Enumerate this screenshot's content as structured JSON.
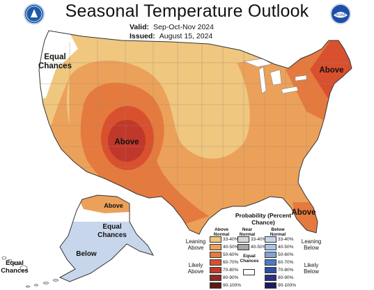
{
  "header": {
    "title": "Seasonal Temperature Outlook",
    "valid_label": "Valid:",
    "valid_value": "Sep-Oct-Nov 2024",
    "issued_label": "Issued:",
    "issued_value": "August 15, 2024"
  },
  "logos": {
    "left_color": "#1f5aa6",
    "right_color": "#1e4fa8",
    "right_text": "NOAA"
  },
  "map_labels": {
    "equal_chances_west": "Equal Chances",
    "above_southwest": "Above",
    "above_northeast": "Above",
    "above_florida": "Above",
    "above_alaska": "Above",
    "equal_chances_alaska": "Equal Chances",
    "below_alaska": "Below",
    "equal_chances_hawaii": "Equal Chances"
  },
  "legend": {
    "title": "Probability (Percent Chance)",
    "col_above": "Above Normal",
    "col_near": "Near Normal",
    "col_below": "Below Normal",
    "equal_chances": "Equal Chances",
    "leaning_above": "Leaning Above",
    "likely_above": "Likely Above",
    "leaning_below": "Leaning Below",
    "likely_below": "Likely Below",
    "above_ranges": [
      "33-40%",
      "40-50%",
      "50-60%",
      "60-70%",
      "70-80%",
      "80-90%",
      "90-100%"
    ],
    "near_ranges": [
      "33-40%",
      "40-50%"
    ],
    "below_ranges": [
      "33-40%",
      "40-50%",
      "50-60%",
      "60-70%",
      "70-80%",
      "80-90%",
      "90-100%"
    ],
    "above_colors": [
      "#f0c77f",
      "#eca15a",
      "#e57a3f",
      "#d9502f",
      "#c0382b",
      "#8e2a23",
      "#5c1a16"
    ],
    "near_colors": [
      "#d9d9d9",
      "#a6a6a6"
    ],
    "below_colors": [
      "#c8d6ec",
      "#a9c4e6",
      "#7fa3d6",
      "#4a7bc8",
      "#2f4fa5",
      "#2b2f85",
      "#1f1b5e"
    ],
    "equal_color": "#ffffff"
  }
}
